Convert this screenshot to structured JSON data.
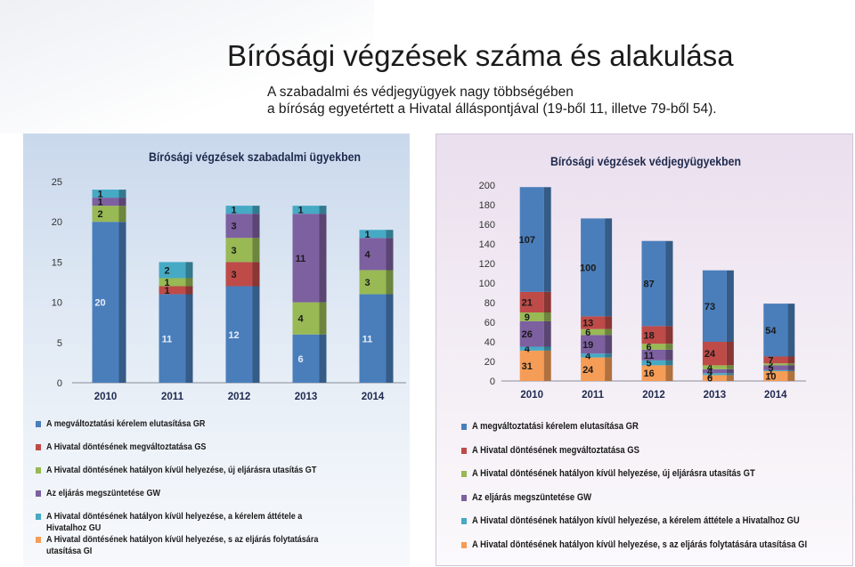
{
  "page": {
    "title": "Bírósági végzések száma és alakulása",
    "subtitle_line1": "A szabadalmi és védjegyügyek nagy többségében",
    "subtitle_line2": "a bíróság egyetértett a Hivatal álláspontjával (19-ből 11, illetve 79-ből 54)."
  },
  "colors": {
    "GR": "#4a7ebb",
    "GS": "#be4b48",
    "GT": "#98b954",
    "GW": "#7d60a0",
    "GU": "#46aac5",
    "GI": "#f59d56"
  },
  "legend": [
    {
      "key": "GR",
      "label": "A megváltoztatási kérelem elutasítása GR"
    },
    {
      "key": "GS",
      "label": "A Hivatal döntésének megváltoztatása  GS"
    },
    {
      "key": "GT",
      "label": "A Hivatal döntésének hatályon kívül helyezése, új eljárásra utasítás  GT"
    },
    {
      "key": "GW",
      "label": "Az eljárás megszüntetése  GW"
    },
    {
      "key": "GU",
      "label": "A Hivatal döntésének hatályon kívül helyezése, a kérelem áttétele a Hivatalhoz GU"
    },
    {
      "key": "GI",
      "label": "A Hivatal döntésének hatályon kívül helyezése, s az eljárás folytatására utasítása GI"
    }
  ],
  "chart_data": [
    {
      "type": "bar",
      "stacked": true,
      "title": "Bírósági végzések szabadalmi ügyekben",
      "categories": [
        "2010",
        "2011",
        "2012",
        "2013",
        "2014"
      ],
      "ylim": [
        0,
        25
      ],
      "yticks": [
        "0",
        "5",
        "10",
        "15",
        "20",
        "25"
      ],
      "series": [
        {
          "key": "GR",
          "name": "A megváltoztatási kérelem elutasítása GR",
          "values": [
            20,
            11,
            12,
            6,
            11
          ]
        },
        {
          "key": "GI",
          "name": "A Hivatal döntésének hatályon kívül helyezése, s az eljárás folytatására utasítása GI",
          "values": [
            0,
            0,
            0,
            0,
            0
          ]
        },
        {
          "key": "GS",
          "name": "A Hivatal döntésének megváltoztatása  GS",
          "values": [
            0,
            1,
            3,
            0,
            0
          ]
        },
        {
          "key": "GT",
          "name": "A Hivatal döntésének hatályon kívül helyezése, új eljárásra utasítás  GT",
          "values": [
            2,
            1,
            3,
            4,
            3
          ]
        },
        {
          "key": "GW",
          "name": "Az eljárás megszüntetése  GW",
          "values": [
            1,
            0,
            3,
            11,
            4
          ]
        },
        {
          "key": "GU",
          "name": "A Hivatal döntésének hatályon kívül helyezése, a kérelem áttétele a Hivatalhoz GU",
          "values": [
            1,
            2,
            1,
            1,
            1
          ]
        }
      ],
      "data_labels": [
        [
          "20",
          "0",
          "",
          "2",
          "1",
          "1"
        ],
        [
          "11",
          "",
          "1",
          "1",
          "",
          "2"
        ],
        [
          "12",
          "",
          "3",
          "3",
          "3",
          "1"
        ],
        [
          "6",
          "",
          "",
          "4",
          "11",
          "1"
        ],
        [
          "11",
          "",
          "",
          "3",
          "4",
          "1"
        ]
      ],
      "grid": false,
      "legend_position": "bottom"
    },
    {
      "type": "bar",
      "stacked": true,
      "title": "Bírósági végzések védjegyügyekben",
      "categories": [
        "2010",
        "2011",
        "2012",
        "2013",
        "2014"
      ],
      "ylim": [
        0,
        200
      ],
      "yticks": [
        "0",
        "20",
        "40",
        "60",
        "80",
        "100",
        "120",
        "140",
        "160",
        "180",
        "200"
      ],
      "series": [
        {
          "key": "GI",
          "name": "A Hivatal döntésének hatályon kívül helyezése, s az eljárás folytatására utasítása GI",
          "values": [
            31,
            24,
            16,
            6,
            10
          ]
        },
        {
          "key": "GU",
          "name": "A Hivatal döntésének hatályon kívül helyezése, a kérelem áttétele a Hivatalhoz GU",
          "values": [
            4,
            4,
            5,
            2,
            1
          ]
        },
        {
          "key": "GW",
          "name": "Az eljárás megszüntetése  GW",
          "values": [
            26,
            19,
            11,
            4,
            5
          ]
        },
        {
          "key": "GT",
          "name": "A Hivatal döntésének hatályon kívül helyezése, új eljárásra utasítás  GT",
          "values": [
            9,
            6,
            6,
            4,
            2
          ]
        },
        {
          "key": "GS",
          "name": "A Hivatal döntésének megváltoztatása  GS",
          "values": [
            21,
            13,
            18,
            24,
            7
          ]
        },
        {
          "key": "GR",
          "name": "A megváltoztatási kérelem elutasítása GR",
          "values": [
            107,
            100,
            87,
            73,
            54
          ]
        }
      ],
      "data_labels": [
        [
          "31",
          "4",
          "26",
          "9",
          "21",
          "107"
        ],
        [
          "24",
          "4",
          "19",
          "6",
          "13",
          "100"
        ],
        [
          "16",
          "5",
          "11",
          "6",
          "18",
          "87"
        ],
        [
          "6",
          "2",
          "4",
          "4",
          "24",
          "73"
        ],
        [
          "10",
          "1",
          "5",
          "2",
          "7",
          "54"
        ]
      ],
      "grid": false,
      "legend_position": "bottom"
    }
  ]
}
